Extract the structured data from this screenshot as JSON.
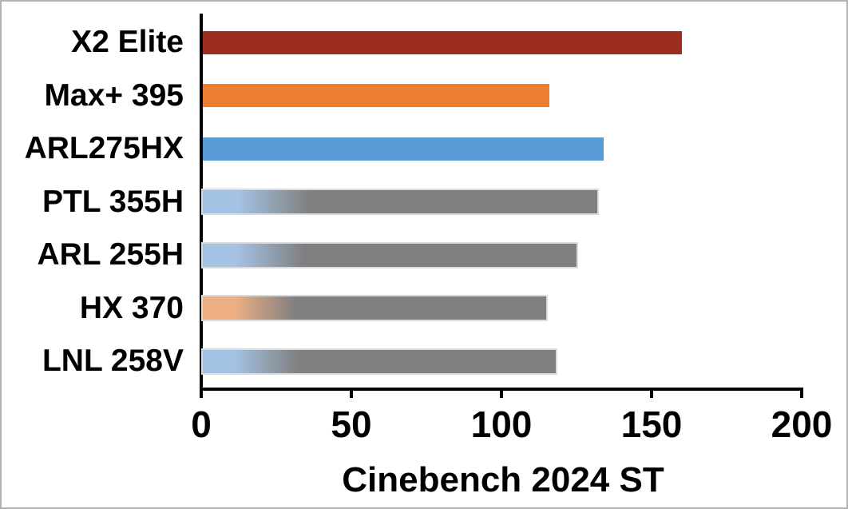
{
  "colors": {
    "axis": "#000000",
    "text": "#000000",
    "frame_border": "#b3b3b3",
    "background": "#ffffff",
    "bar_dark_red": "#9a2d1e",
    "bar_orange": "#ed7d31",
    "bar_blue": "#5b9bd5",
    "bar_gray": "#808080",
    "gradient_light_blue": "#a4c2e3",
    "gradient_light_orange": "#efaf85",
    "gray_bar_outline": "#dbdbdb"
  },
  "chart_data": {
    "type": "bar",
    "orientation": "horizontal",
    "title": "",
    "xlabel": "Cinebench 2024 ST",
    "ylabel": "",
    "xlim": [
      0,
      200
    ],
    "xticks": [
      0,
      50,
      100,
      150,
      200
    ],
    "xtick_labels": [
      "0",
      "50",
      "100",
      "150",
      "200"
    ],
    "grid": false,
    "legend": false,
    "categories": [
      "X2 Elite",
      "Max+ 395",
      "ARL275HX",
      "PTL 355H",
      "ARL 255H",
      "HX 370",
      "LNL 258V"
    ],
    "values": [
      160,
      116,
      134,
      132,
      125,
      115,
      118
    ],
    "bar_styles": [
      {
        "fill": "#9a2d1e",
        "gradient_from": null,
        "outline": null
      },
      {
        "fill": "#ed7d31",
        "gradient_from": null,
        "outline": null
      },
      {
        "fill": "#5b9bd5",
        "gradient_from": null,
        "outline": null
      },
      {
        "fill": "#808080",
        "gradient_from": "#a4c2e3",
        "outline": "#dbdbdb"
      },
      {
        "fill": "#808080",
        "gradient_from": "#a4c2e3",
        "outline": "#dbdbdb"
      },
      {
        "fill": "#808080",
        "gradient_from": "#efaf85",
        "outline": "#dbdbdb"
      },
      {
        "fill": "#808080",
        "gradient_from": "#a4c2e3",
        "outline": "#dbdbdb"
      }
    ]
  }
}
